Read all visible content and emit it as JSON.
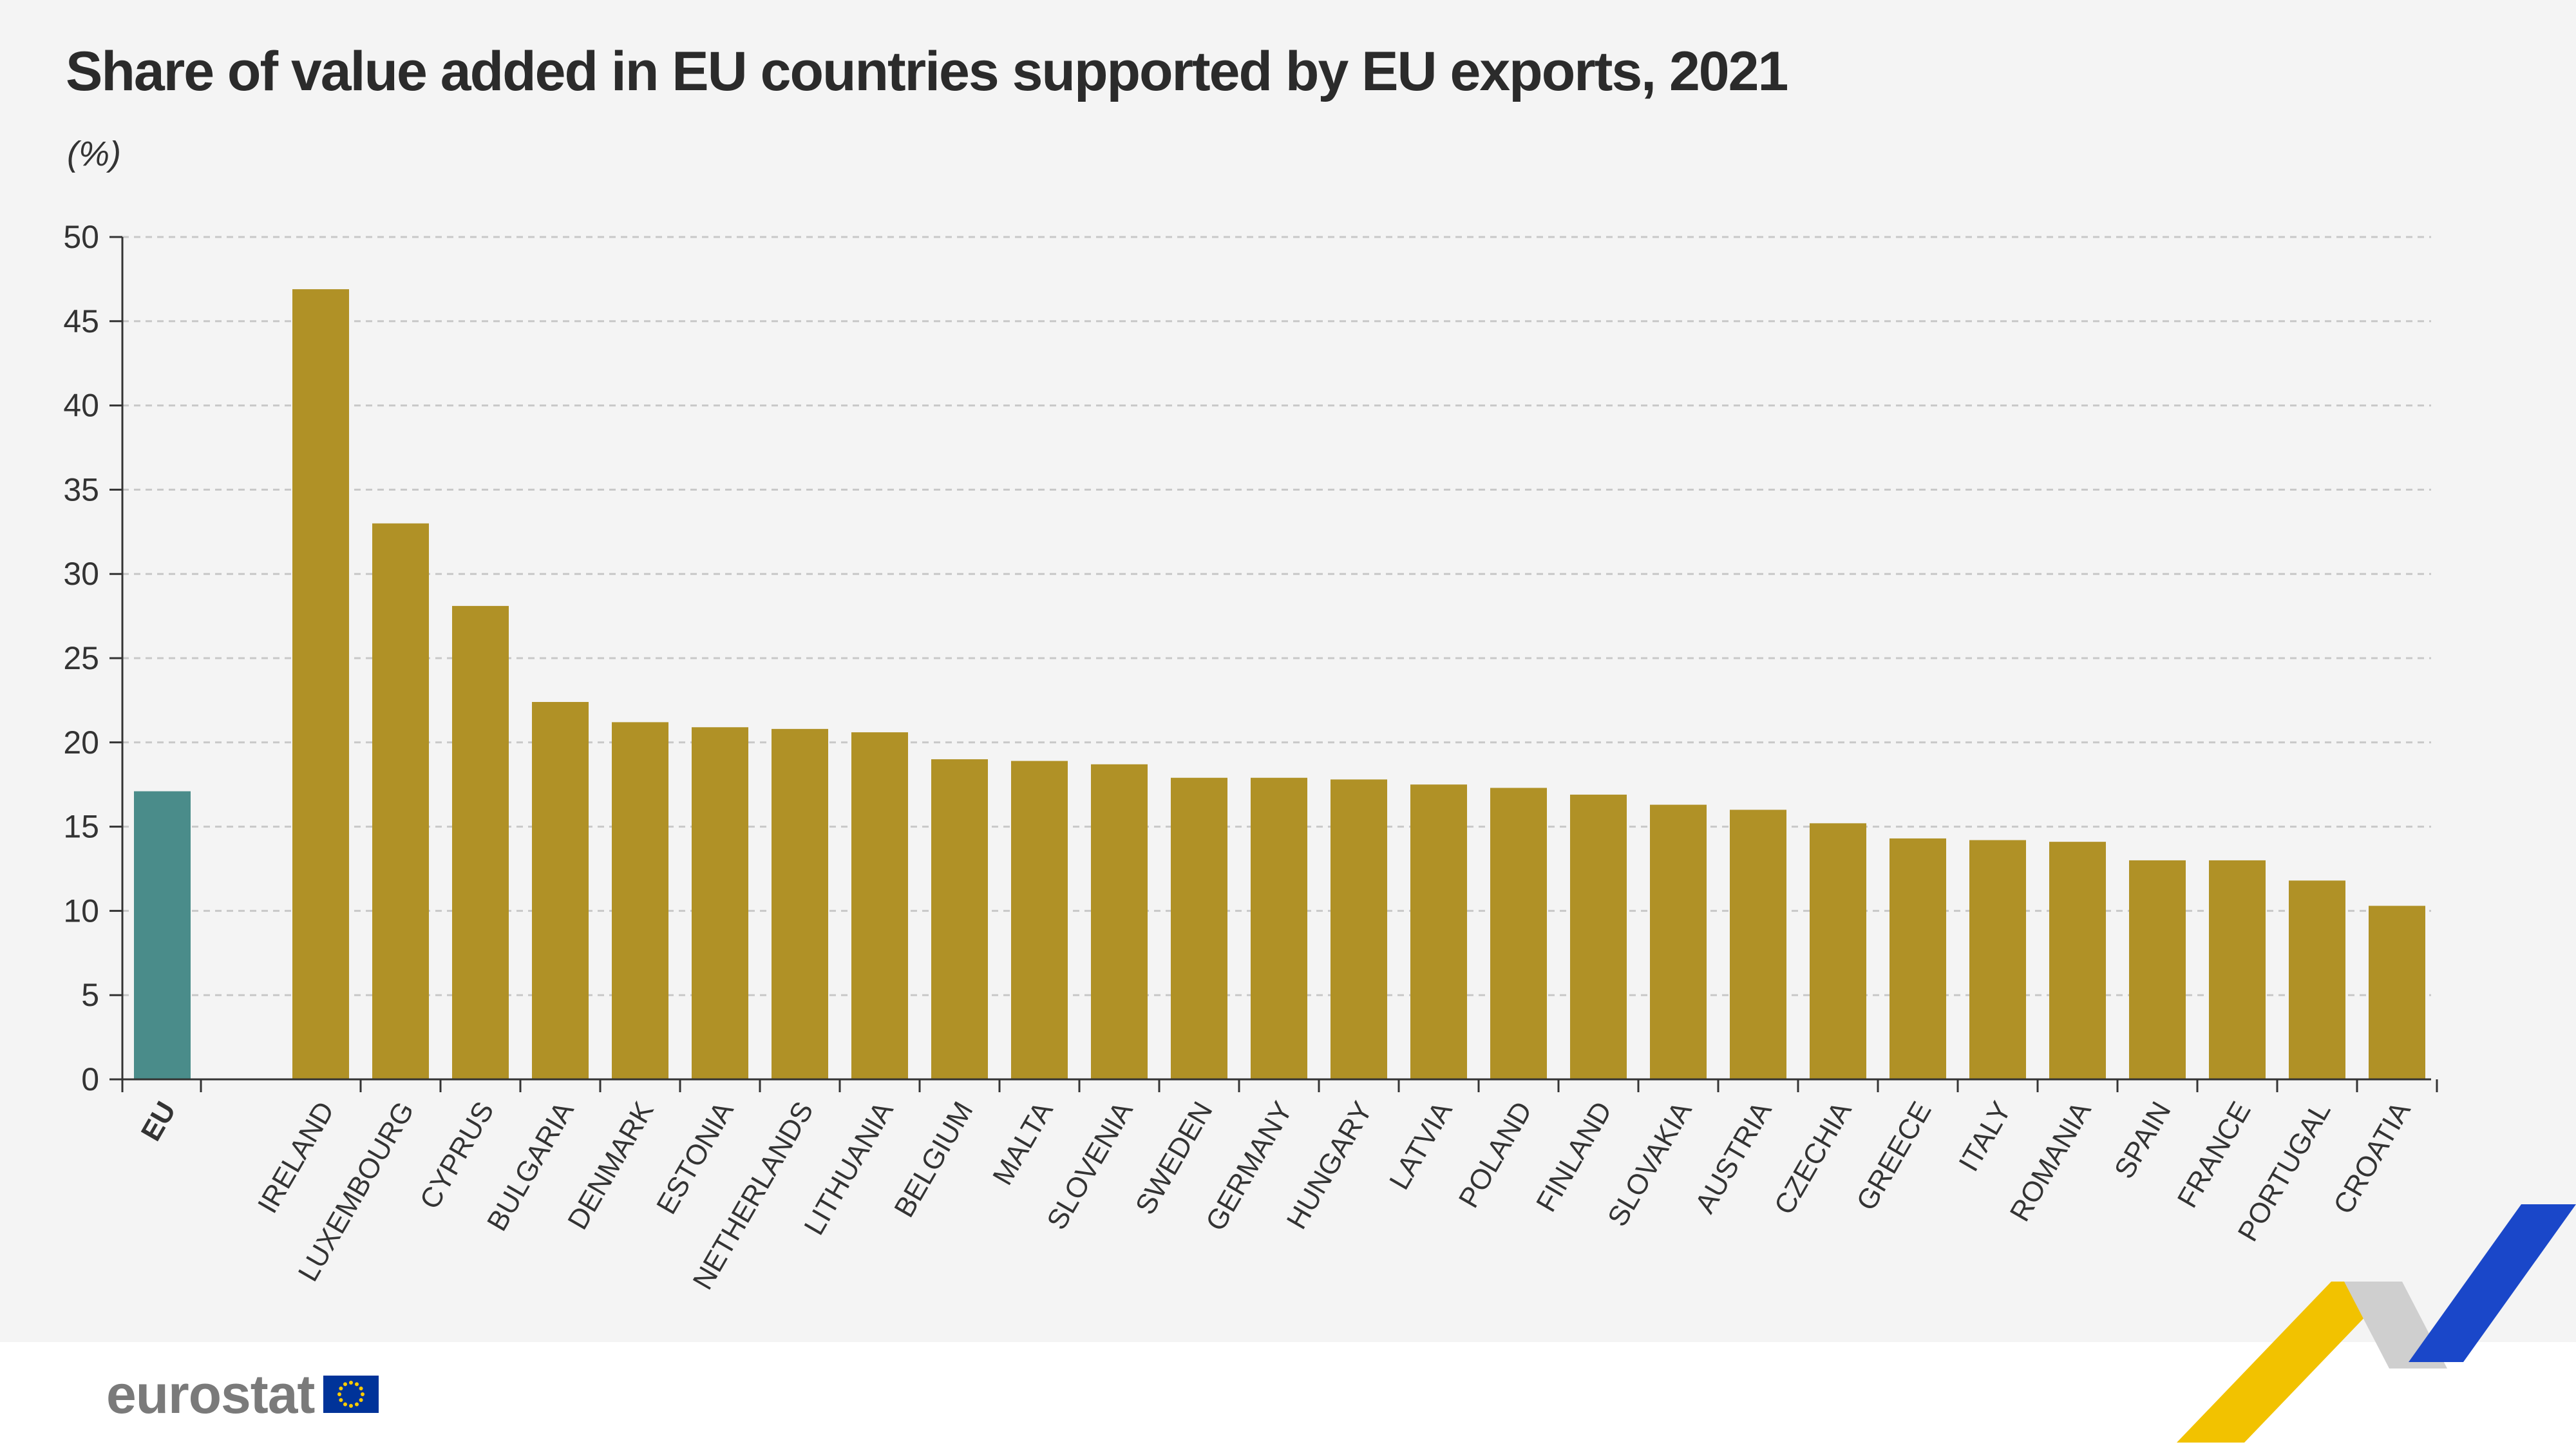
{
  "title": "Share of value added in EU countries supported by EU exports, 2021",
  "unit": "(%)",
  "brand": "eurostat",
  "colors": {
    "eu_bar": "#4a8c8a",
    "country_bar": "#b09126",
    "background": "#f4f4f4",
    "gridline": "#c8c8c8"
  },
  "chart_data": {
    "type": "bar",
    "title": "Share of value added in EU countries supported by EU exports, 2021",
    "ylabel": "(%)",
    "xlabel": "",
    "ylim": [
      0,
      50
    ],
    "yticks": [
      0,
      5,
      10,
      15,
      20,
      25,
      30,
      35,
      40,
      45,
      50
    ],
    "grid": true,
    "categories": [
      "EU",
      "IRELAND",
      "LUXEMBOURG",
      "CYPRUS",
      "BULGARIA",
      "DENMARK",
      "ESTONIA",
      "NETHERLANDS",
      "LITHUANIA",
      "BELGIUM",
      "MALTA",
      "SLOVENIA",
      "SWEDEN",
      "GERMANY",
      "HUNGARY",
      "LATVIA",
      "POLAND",
      "FINLAND",
      "SLOVAKIA",
      "AUSTRIA",
      "CZECHIA",
      "GREECE",
      "ITALY",
      "ROMANIA",
      "SPAIN",
      "FRANCE",
      "PORTUGAL",
      "CROATIA"
    ],
    "values": [
      17.1,
      46.9,
      33.0,
      28.1,
      22.4,
      21.2,
      20.9,
      20.8,
      20.6,
      19.0,
      18.9,
      18.7,
      17.9,
      17.9,
      17.8,
      17.5,
      17.3,
      16.9,
      16.3,
      16.0,
      15.2,
      14.3,
      14.2,
      14.1,
      13.0,
      13.0,
      11.8,
      10.3
    ]
  }
}
